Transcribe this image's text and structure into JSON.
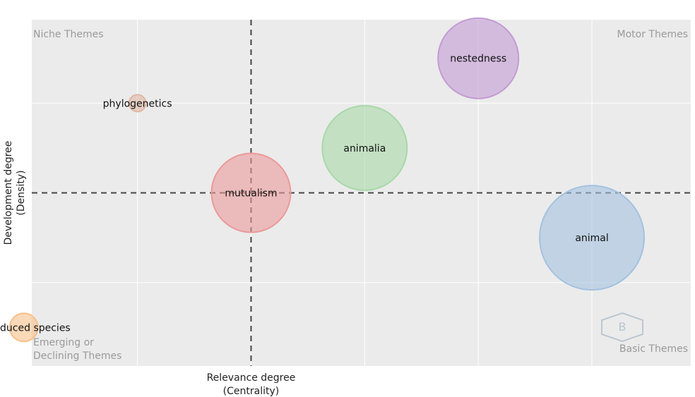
{
  "chart_data": {
    "type": "scatter",
    "subtype": "bubble",
    "xlabel": [
      "Relevance degree",
      "(Centrality)"
    ],
    "ylabel": [
      "Development degree",
      "(Density)"
    ],
    "grid": true,
    "quadrant_labels": {
      "top_left": [
        "Niche Themes"
      ],
      "top_right": [
        "Motor Themes"
      ],
      "bottom_left": [
        "Emerging or",
        "Declining Themes"
      ],
      "bottom_right": [
        "Basic Themes"
      ]
    },
    "reference_lines": {
      "x": 0,
      "y": 0
    },
    "xlim": [
      -1.93,
      3.87
    ],
    "ylim": [
      -1.93,
      1.93
    ],
    "points": [
      {
        "label": "nestedness",
        "x": 2.0,
        "y": 1.5,
        "size": 57,
        "color": "#c39bd3"
      },
      {
        "label": "phylogenetics",
        "x": -1.0,
        "y": 1.0,
        "size": 12,
        "color": "#e0b8a4"
      },
      {
        "label": "animalia",
        "x": 1.0,
        "y": 0.5,
        "size": 60,
        "color": "#a8d8a8"
      },
      {
        "label": "mutualism",
        "x": 0.0,
        "y": 0.0,
        "size": 56,
        "color": "#eb9a9a"
      },
      {
        "label": "animal",
        "x": 3.0,
        "y": -0.5,
        "size": 74,
        "color": "#a4c2e0"
      },
      {
        "label": "introduced species",
        "x": -2.0,
        "y": -1.5,
        "size": 20,
        "color": "#f7c08a"
      }
    ]
  }
}
